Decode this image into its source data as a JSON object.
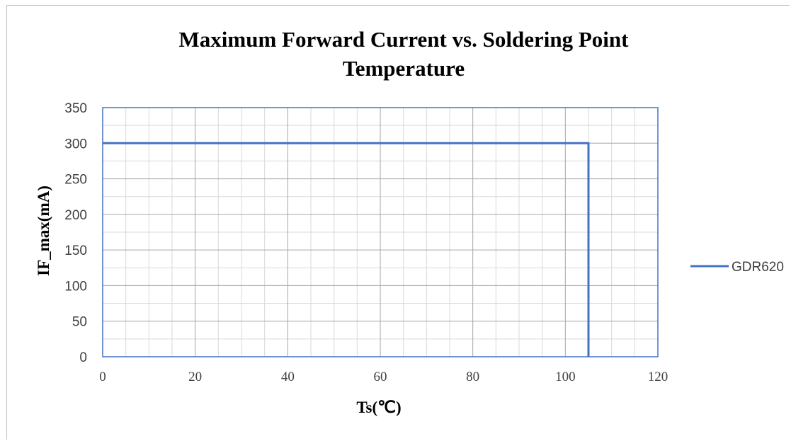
{
  "chart_data": {
    "type": "line",
    "title_lines": [
      "Maximum Forward Current vs. Soldering Point",
      "Temperature"
    ],
    "xlabel": "Ts(℃)",
    "ylabel": "IF_max(mA)",
    "xlim": [
      0,
      120
    ],
    "ylim": [
      0,
      350
    ],
    "x_ticks": [
      0,
      20,
      40,
      60,
      80,
      100,
      120
    ],
    "y_ticks": [
      0,
      50,
      100,
      150,
      200,
      250,
      300,
      350
    ],
    "x_minor_step": 5,
    "y_minor_step": 25,
    "grid": true,
    "legend_position": "right",
    "series": [
      {
        "name": "GDR620",
        "color": "#4472c4",
        "points": [
          [
            0,
            300
          ],
          [
            105,
            300
          ],
          [
            105,
            0
          ]
        ]
      }
    ]
  }
}
